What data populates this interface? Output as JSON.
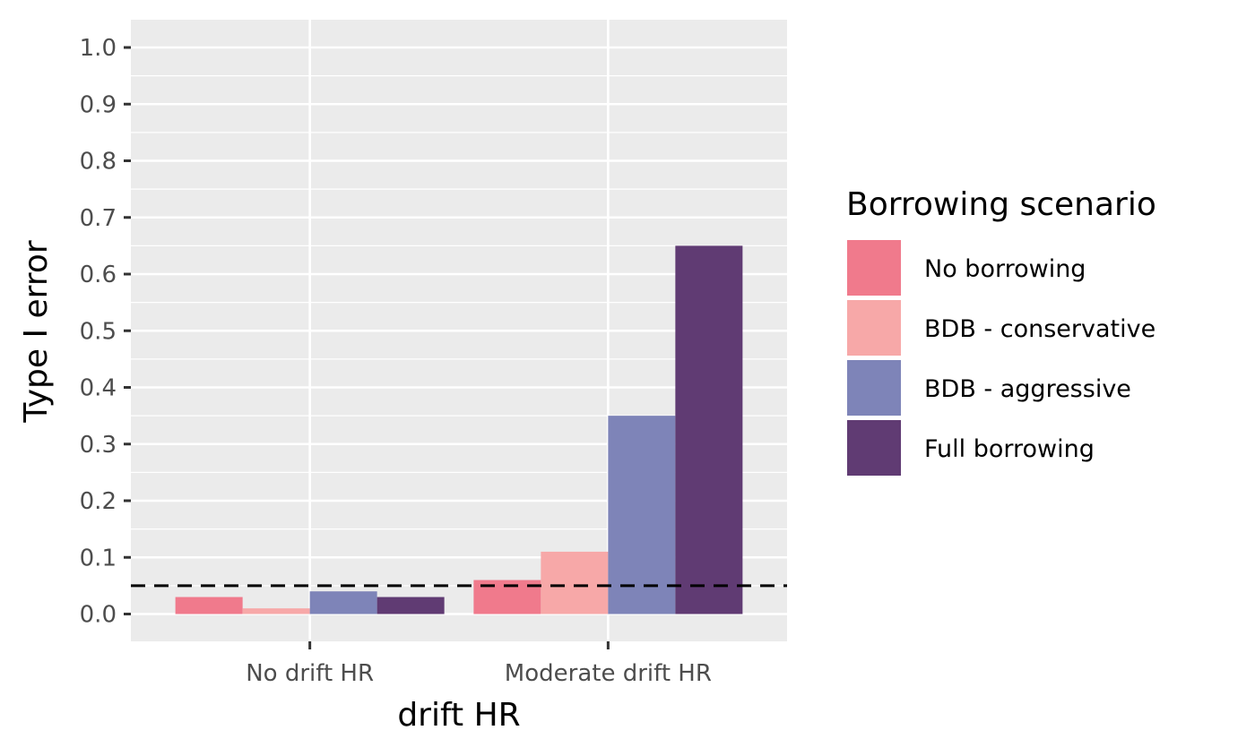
{
  "chart_data": {
    "type": "bar",
    "title": "",
    "xlabel": "drift HR",
    "ylabel": "Type I error",
    "categories": [
      "No drift HR",
      "Moderate drift HR"
    ],
    "series": [
      {
        "name": "No borrowing",
        "values": [
          0.03,
          0.06
        ],
        "color": "#F07A8C"
      },
      {
        "name": "BDB - conservative",
        "values": [
          0.01,
          0.11
        ],
        "color": "#F7A8A8"
      },
      {
        "name": "BDB - aggressive",
        "values": [
          0.04,
          0.35
        ],
        "color": "#7E84B8"
      },
      {
        "name": "Full borrowing",
        "values": [
          0.03,
          0.65
        ],
        "color": "#603B73"
      }
    ],
    "ylim": [
      -0.05,
      1.05
    ],
    "yticks": [
      "0.0",
      "0.1",
      "0.2",
      "0.3",
      "0.4",
      "0.5",
      "0.6",
      "0.7",
      "0.8",
      "0.9",
      "1.0"
    ],
    "reference_line": {
      "y": 0.05,
      "style": "dashed",
      "color": "#000000"
    },
    "legend": {
      "title": "Borrowing scenario",
      "placement": "right"
    },
    "grid": true,
    "panel_background": "#EBEBEB",
    "grid_color": "#FFFFFF"
  }
}
